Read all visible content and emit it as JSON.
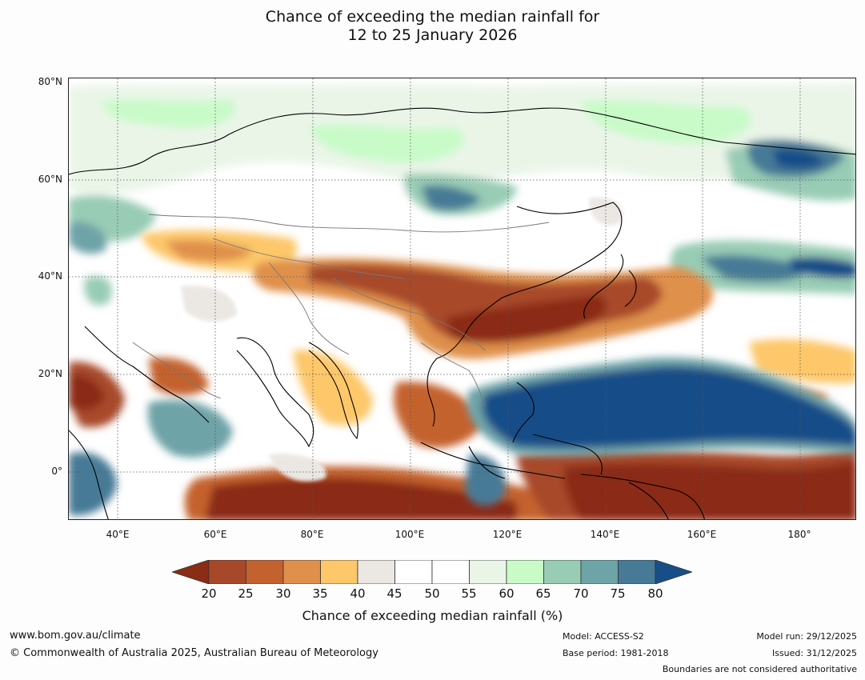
{
  "title": {
    "line1": "Chance of exceeding the median rainfall for",
    "line2": "12 to 25 January 2026"
  },
  "map": {
    "lat_labels": [
      "80°N",
      "60°N",
      "40°N",
      "20°N",
      "0°"
    ],
    "lon_labels": [
      "40°E",
      "60°E",
      "80°E",
      "100°E",
      "120°E",
      "140°E",
      "160°E",
      "180°"
    ],
    "lat_range_deg": [
      -10,
      80
    ],
    "lon_range_deg": [
      30,
      192
    ]
  },
  "colorbar": {
    "ticks": [
      "20",
      "25",
      "30",
      "35",
      "40",
      "45",
      "50",
      "55",
      "60",
      "65",
      "70",
      "75",
      "80"
    ],
    "colors": [
      "#8b2c15",
      "#a8482a",
      "#c4622f",
      "#df904b",
      "#fdc76a",
      "#ebe8e4",
      "#ffffff",
      "#ffffff",
      "#eaf5e8",
      "#c8fbc8",
      "#99ccb5",
      "#6ea3a7",
      "#467a96",
      "#184e88"
    ],
    "label": "Chance of exceeding median rainfall (%)"
  },
  "footer": {
    "website": "www.bom.gov.au/climate",
    "copyright": "© Commonwealth of Australia 2025, Australian Bureau of Meteorology",
    "model": "Model: ACCESS-S2",
    "base_period": "Base period: 1981-2018",
    "model_run": "Model run: 29/12/2025",
    "issued": "Issued: 31/12/2025",
    "disclaimer": "Boundaries are not considered authoritative"
  }
}
